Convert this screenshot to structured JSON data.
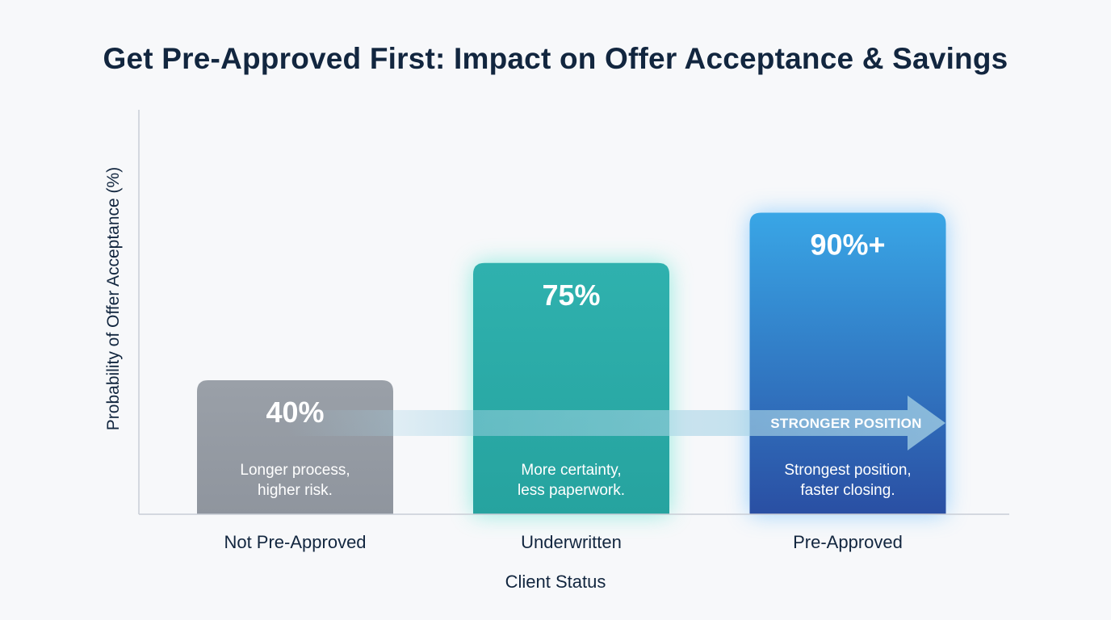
{
  "chart_data": {
    "type": "bar",
    "title": "Get Pre-Approved First: Impact on Offer Acceptance & Savings",
    "xlabel": "Client Status",
    "ylabel": "Probability of Offer Acceptance (%)",
    "ylim": [
      0,
      100
    ],
    "grid": false,
    "categories": [
      "Not Pre-Approved",
      "Underwritten",
      "Pre-Approved"
    ],
    "values": [
      40,
      75,
      90
    ],
    "value_labels": [
      "40%",
      "75%",
      "90%+"
    ],
    "notes": [
      [
        "Longer process,",
        "higher risk."
      ],
      [
        "More certainty,",
        "less paperwork."
      ],
      [
        "Strongest position,",
        "faster closing."
      ]
    ],
    "colors": [
      [
        "#9aa0a8",
        "#8f959e"
      ],
      [
        "#2fb1ae",
        "#26a39f"
      ],
      [
        "#39a6e6",
        "#2a4fa3"
      ]
    ],
    "glow_colors": [
      "none",
      "#3fe0c8",
      "#4fb3ff"
    ],
    "annotation": {
      "text": "STRONGER POSITION",
      "color": "#a8d4e6"
    }
  }
}
